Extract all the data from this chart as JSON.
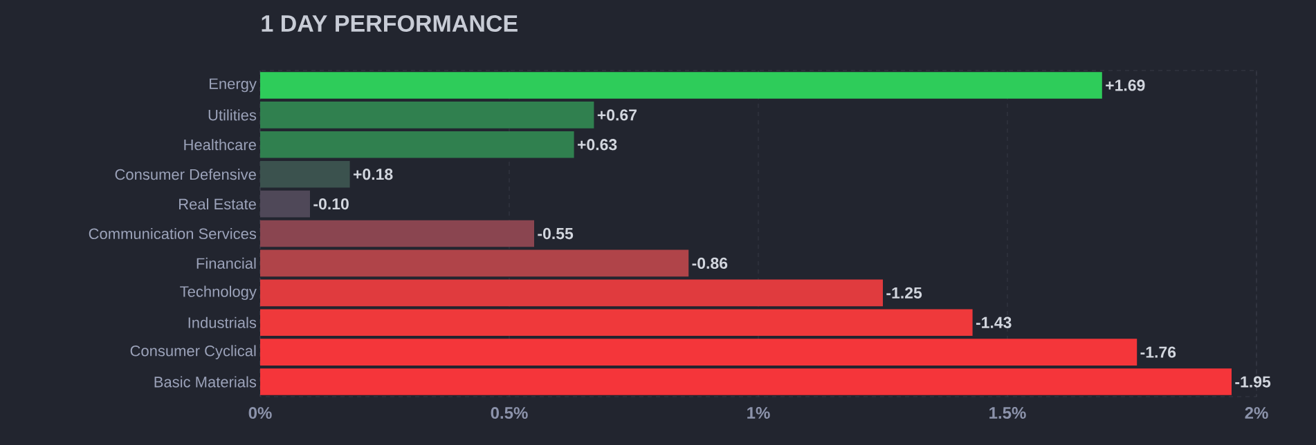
{
  "chart_data": {
    "type": "bar",
    "orientation": "horizontal",
    "title": "1 DAY PERFORMANCE",
    "categories": [
      "Energy",
      "Utilities",
      "Healthcare",
      "Consumer Defensive",
      "Real Estate",
      "Communication Services",
      "Financial",
      "Technology",
      "Industrials",
      "Consumer Cyclical",
      "Basic Materials"
    ],
    "values": [
      1.69,
      0.67,
      0.63,
      0.18,
      -0.1,
      -0.55,
      -0.86,
      -1.25,
      -1.43,
      -1.76,
      -1.95
    ],
    "base": [
      0,
      0,
      0,
      0,
      0.1,
      0.55,
      0.86,
      1.25,
      1.43,
      1.76,
      1.95
    ],
    "value_labels": [
      "+1.69",
      "+0.67",
      "+0.63",
      "+0.18",
      "-0.10",
      "-0.55",
      "-0.86",
      "-1.25",
      "-1.43",
      "-1.76",
      "-1.95"
    ],
    "colors": [
      "#2ecc5a",
      "#30804f",
      "#30804f",
      "#3b524e",
      "#4f4858",
      "#8a4550",
      "#b04449",
      "#e03b3e",
      "#ef393b",
      "#f4363a",
      "#f5353a"
    ],
    "xlim": [
      0,
      2
    ],
    "xticks": [
      {
        "value": 0,
        "label": "0%"
      },
      {
        "value": 0.5,
        "label": "0.5%"
      },
      {
        "value": 1,
        "label": "1%"
      },
      {
        "value": 1.5,
        "label": "1.5%"
      },
      {
        "value": 2,
        "label": "2%"
      }
    ],
    "grid": "x"
  }
}
